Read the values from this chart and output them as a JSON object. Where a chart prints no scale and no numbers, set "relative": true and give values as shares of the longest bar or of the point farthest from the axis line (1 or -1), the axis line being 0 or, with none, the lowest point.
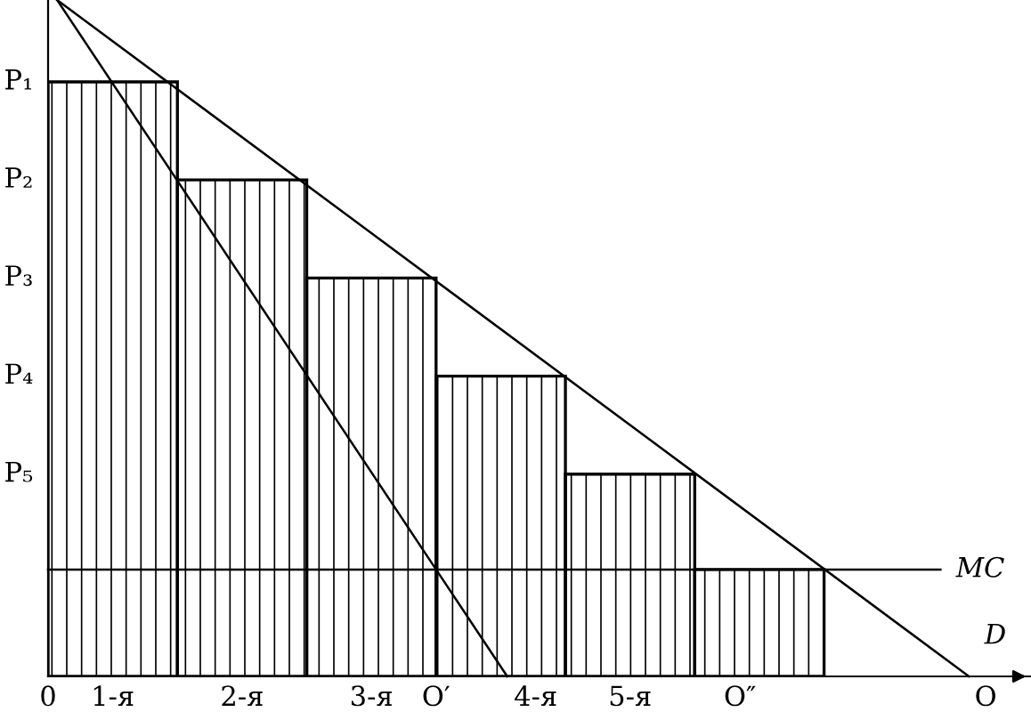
{
  "chart_data": {
    "type": "bar",
    "relative": true,
    "x": [
      0.5,
      1.5,
      2.5,
      3.5,
      4.5,
      5.5
    ],
    "series": [
      {
        "color": "#000000",
        "values": [
          0.879,
          0.734,
          0.589,
          0.444,
          0.299,
          0.158
        ]
      },
      {
        "type": "line",
        "name": "D",
        "color": "#000000",
        "x": [
          0.07,
          7.12
        ],
        "values": [
          1,
          0
        ]
      },
      {
        "type": "line",
        "color": "#000000",
        "x": [
          0.07,
          3.0,
          3.55
        ],
        "values": [
          1,
          0.158,
          0
        ]
      },
      {
        "type": "line",
        "name": "MC",
        "color": "#000000",
        "x": [
          0,
          6.9
        ],
        "values": [
          0.158,
          0.158
        ]
      }
    ],
    "xlim": [
      0,
      7.6
    ],
    "xticks": [
      0,
      {
        "value": 0.5,
        "label": "1-я"
      },
      {
        "value": 1.5,
        "label": "2-я"
      },
      {
        "value": 2.5,
        "label": "3-я"
      },
      {
        "value": 3.0,
        "label": "O′"
      },
      {
        "value": 3.77,
        "label": "4-я"
      },
      {
        "value": 4.5,
        "label": "5-я"
      },
      {
        "value": 5.35,
        "label": "O″"
      },
      {
        "value": 7.25,
        "label": "O"
      }
    ],
    "annotations": [
      "P₁",
      "P₂",
      "P₃",
      "P₄",
      "P₅"
    ],
    "grid": false,
    "legend": false,
    "marker": "none",
    "line_style": "solid"
  }
}
